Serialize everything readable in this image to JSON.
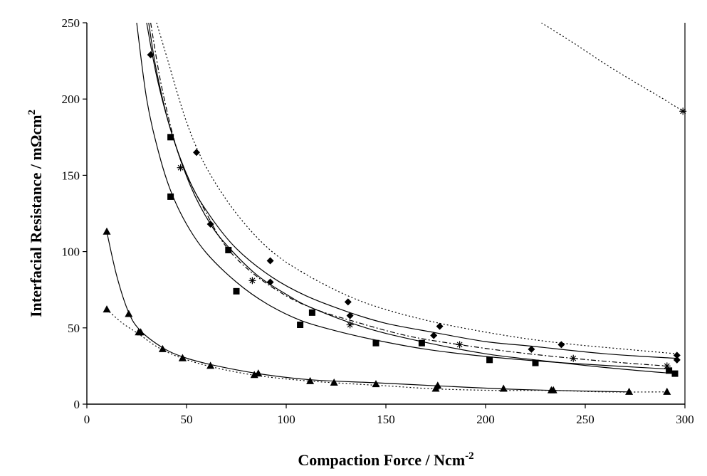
{
  "chart_data": {
    "type": "scatter",
    "title": "",
    "xlabel": "Compaction Force / Ncm",
    "xlabel_sup": "-2",
    "ylabel": "Interfacial Resistance / mΩcm",
    "ylabel_sup": "2",
    "xlim": [
      0,
      300
    ],
    "ylim": [
      0,
      250
    ],
    "xticks": [
      0,
      50,
      100,
      150,
      200,
      250,
      300
    ],
    "yticks": [
      0,
      50,
      100,
      150,
      200,
      250
    ],
    "grid": false,
    "legend": "none",
    "series": [
      {
        "marker": "diamond",
        "line": "dotted",
        "points": [
          [
            55,
            165
          ],
          [
            92,
            94
          ],
          [
            131,
            67
          ],
          [
            177,
            51
          ],
          [
            238,
            39
          ],
          [
            296,
            32
          ]
        ],
        "curve": [
          [
            35,
            250
          ],
          [
            40,
            228
          ],
          [
            50,
            185
          ],
          [
            60,
            155
          ],
          [
            75,
            125
          ],
          [
            92,
            101
          ],
          [
            110,
            85
          ],
          [
            131,
            71
          ],
          [
            150,
            62
          ],
          [
            177,
            53
          ],
          [
            210,
            45
          ],
          [
            238,
            40
          ],
          [
            270,
            36
          ],
          [
            296,
            33
          ]
        ]
      },
      {
        "marker": "diamond",
        "line": "solid",
        "points": [
          [
            32,
            229
          ],
          [
            62,
            118
          ],
          [
            92,
            80
          ],
          [
            132,
            58
          ],
          [
            174,
            45
          ],
          [
            223,
            36
          ],
          [
            296,
            29
          ]
        ],
        "curve": [
          [
            31,
            250
          ],
          [
            35,
            218
          ],
          [
            42,
            180
          ],
          [
            52,
            145
          ],
          [
            62,
            123
          ],
          [
            75,
            102
          ],
          [
            92,
            84
          ],
          [
            110,
            71
          ],
          [
            132,
            60
          ],
          [
            150,
            53
          ],
          [
            174,
            47
          ],
          [
            200,
            41
          ],
          [
            223,
            38
          ],
          [
            260,
            33
          ],
          [
            296,
            30
          ]
        ]
      },
      {
        "marker": "asterisk",
        "line": "dashdot",
        "points": [
          [
            47,
            155
          ],
          [
            83,
            81
          ],
          [
            132,
            52
          ],
          [
            187,
            39
          ],
          [
            244,
            30
          ],
          [
            291,
            25
          ]
        ],
        "curve": [
          [
            32,
            250
          ],
          [
            38,
            205
          ],
          [
            47,
            160
          ],
          [
            60,
            125
          ],
          [
            70,
            103
          ],
          [
            83,
            86
          ],
          [
            100,
            71
          ],
          [
            115,
            62
          ],
          [
            132,
            55
          ],
          [
            160,
            45
          ],
          [
            187,
            39
          ],
          [
            215,
            34
          ],
          [
            244,
            30
          ],
          [
            270,
            27
          ],
          [
            291,
            25
          ]
        ]
      },
      {
        "marker": "square",
        "line": "solid",
        "points": [
          [
            42,
            175
          ],
          [
            71,
            101
          ],
          [
            113,
            60
          ],
          [
            168,
            40
          ],
          [
            225,
            27
          ],
          [
            295,
            20
          ]
        ],
        "curve": [
          [
            30,
            250
          ],
          [
            35,
            215
          ],
          [
            42,
            180
          ],
          [
            52,
            143
          ],
          [
            62,
            118
          ],
          [
            71,
            103
          ],
          [
            85,
            85
          ],
          [
            100,
            72
          ],
          [
            113,
            63
          ],
          [
            140,
            50
          ],
          [
            168,
            41
          ],
          [
            200,
            33
          ],
          [
            225,
            29
          ],
          [
            260,
            24
          ],
          [
            295,
            20
          ]
        ]
      },
      {
        "marker": "square",
        "line": "solid",
        "points": [
          [
            42,
            136
          ],
          [
            75,
            74
          ],
          [
            107,
            52
          ],
          [
            145,
            40
          ],
          [
            202,
            29
          ],
          [
            292,
            22
          ]
        ],
        "curve": [
          [
            25,
            250
          ],
          [
            30,
            200
          ],
          [
            36,
            165
          ],
          [
            42,
            140
          ],
          [
            50,
            118
          ],
          [
            60,
            99
          ],
          [
            75,
            80
          ],
          [
            90,
            66
          ],
          [
            107,
            55
          ],
          [
            125,
            48
          ],
          [
            145,
            42
          ],
          [
            170,
            36
          ],
          [
            202,
            31
          ],
          [
            240,
            27
          ],
          [
            292,
            23
          ]
        ]
      },
      {
        "marker": "triangle",
        "line": "solid",
        "points": [
          [
            10,
            113
          ],
          [
            21,
            59
          ],
          [
            27,
            47
          ],
          [
            38,
            36
          ],
          [
            48,
            30
          ],
          [
            62,
            25
          ],
          [
            86,
            20
          ],
          [
            112,
            15
          ],
          [
            145,
            13
          ],
          [
            176,
            12
          ],
          [
            209,
            10
          ],
          [
            234,
            9
          ],
          [
            272,
            8
          ]
        ],
        "curve": [
          [
            10,
            113
          ],
          [
            15,
            84
          ],
          [
            21,
            60
          ],
          [
            27,
            48
          ],
          [
            38,
            37
          ],
          [
            48,
            31
          ],
          [
            62,
            26
          ],
          [
            86,
            20
          ],
          [
            112,
            16
          ],
          [
            145,
            14
          ],
          [
            176,
            12
          ],
          [
            209,
            10
          ],
          [
            234,
            9
          ],
          [
            272,
            8
          ]
        ]
      },
      {
        "marker": "triangle",
        "line": "dotted",
        "points": [
          [
            10,
            62
          ],
          [
            26,
            47
          ],
          [
            48,
            30
          ],
          [
            84,
            19
          ],
          [
            124,
            14
          ],
          [
            175,
            10
          ],
          [
            233,
            9
          ],
          [
            291,
            8
          ]
        ],
        "curve": [
          [
            10,
            62
          ],
          [
            18,
            53
          ],
          [
            26,
            46
          ],
          [
            36,
            37
          ],
          [
            48,
            30
          ],
          [
            64,
            24
          ],
          [
            84,
            19
          ],
          [
            104,
            16
          ],
          [
            124,
            14
          ],
          [
            150,
            12
          ],
          [
            175,
            10
          ],
          [
            205,
            9
          ],
          [
            233,
            9
          ],
          [
            260,
            8
          ],
          [
            291,
            8
          ]
        ]
      },
      {
        "marker": "asterisk",
        "line": "dotted",
        "points": [
          [
            299,
            192
          ]
        ],
        "curve": [
          [
            228,
            250
          ],
          [
            245,
            236
          ],
          [
            260,
            223
          ],
          [
            275,
            211
          ],
          [
            288,
            201
          ],
          [
            299,
            192
          ]
        ]
      }
    ]
  }
}
